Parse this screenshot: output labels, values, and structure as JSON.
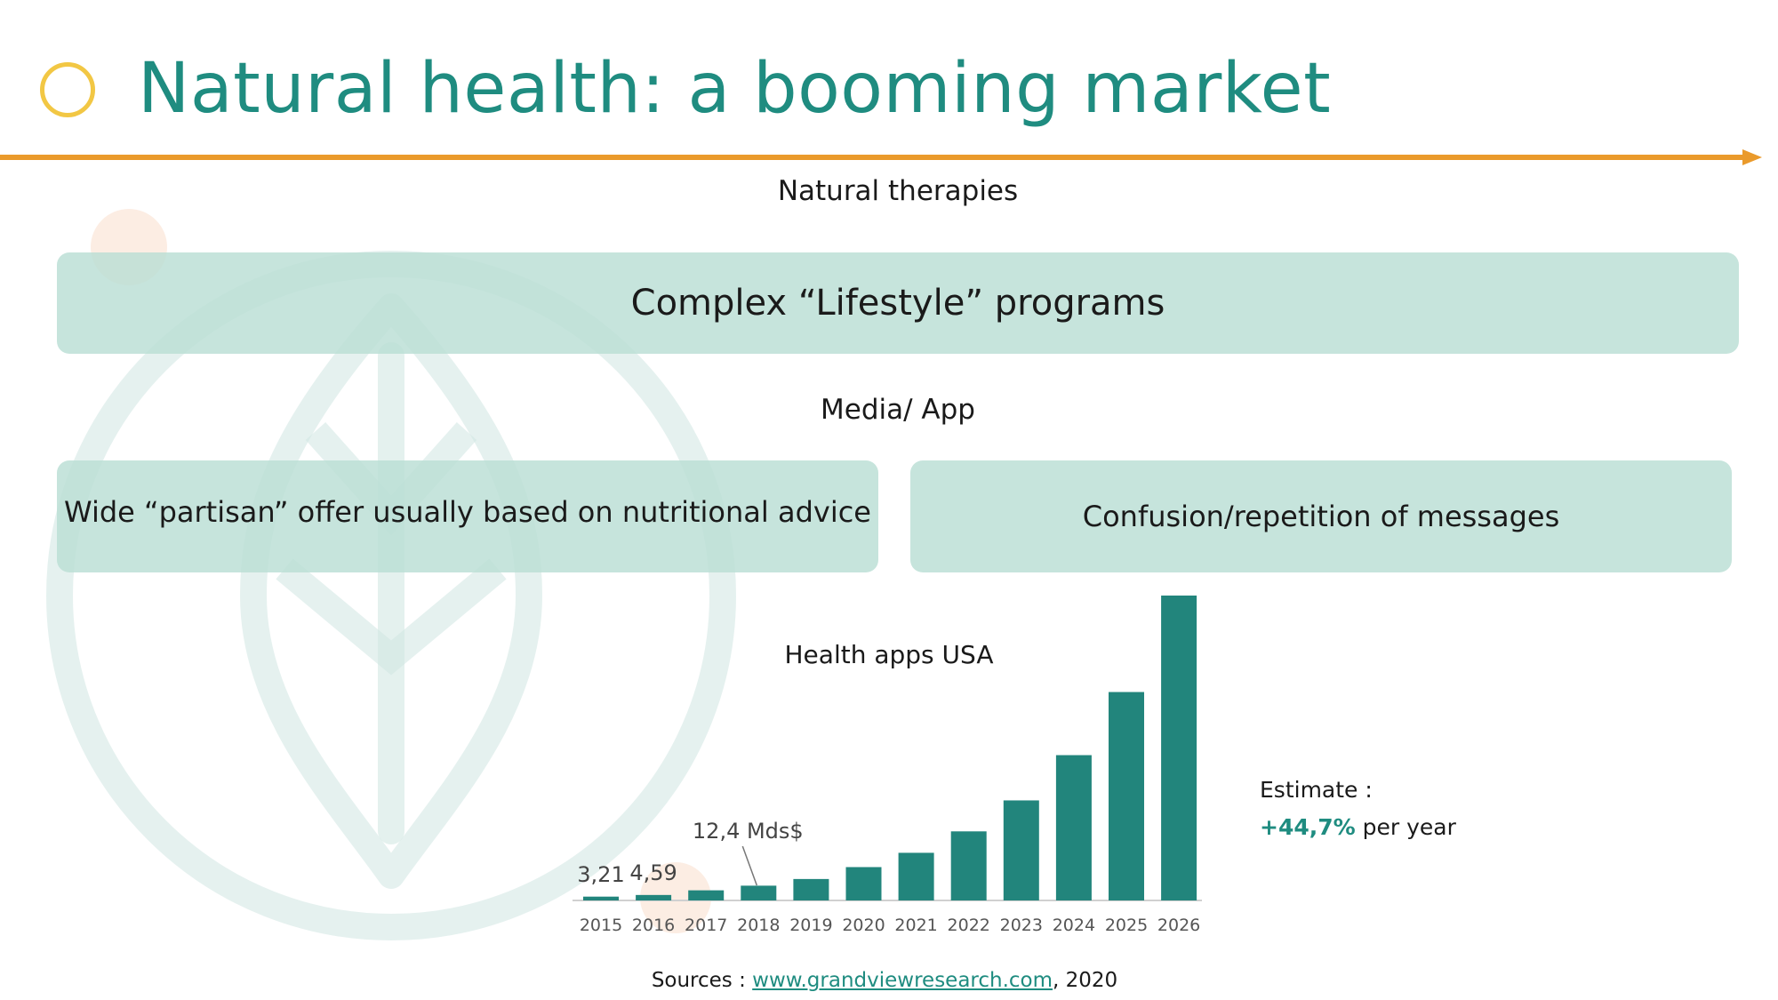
{
  "header": {
    "title": "Natural health: a booming market"
  },
  "sections": {
    "natural_therapies_label": "Natural therapies",
    "lifestyle_box": "Complex “Lifestyle” programs",
    "media_app_label": "Media/ App",
    "partisan_box": "Wide “partisan” offer usually based on nutritional advice",
    "confusion_box": "Confusion/repetition of messages"
  },
  "estimate": {
    "label": "Estimate :",
    "growth": "+44,7%",
    "growth_suffix": " per year"
  },
  "sources": {
    "prefix": "Sources : ",
    "link": "www.grandviewresearch.com",
    "suffix": ", 2020"
  },
  "colors": {
    "accent_teal": "#1f8c80",
    "bar_teal": "#22857c",
    "line_orange": "#ea9a2b",
    "circle_yellow": "#f2c744",
    "box_fill": "#bcded4"
  },
  "chart_data": {
    "type": "bar",
    "title": "Health apps USA",
    "categories": [
      "2015",
      "2016",
      "2017",
      "2018",
      "2019",
      "2020",
      "2021",
      "2022",
      "2023",
      "2024",
      "2025",
      "2026"
    ],
    "values": [
      3.21,
      4.59,
      8.5,
      12.4,
      18,
      28,
      40,
      58,
      84,
      122,
      175,
      256
    ],
    "data_labels": [
      {
        "index": 0,
        "text": "3,21"
      },
      {
        "index": 1,
        "text": "4,59"
      },
      {
        "index": 3,
        "text": "12,4 Mds$"
      }
    ],
    "xlabel": "",
    "ylabel": "",
    "ylim": [
      0,
      256
    ],
    "grid": false,
    "legend": "none"
  }
}
